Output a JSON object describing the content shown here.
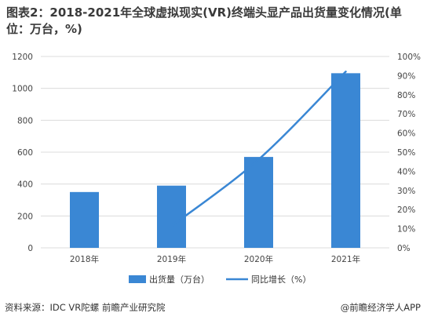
{
  "title": "图表2：2018-2021年全球虚拟现实(VR)终端头显产品出货量变化情况(单位：万台，%)",
  "footer": {
    "source": "资料来源：IDC VR陀螺 前瞻产业研究院",
    "brand": "@前瞻经济学人APP"
  },
  "chart_data": {
    "type": "bar",
    "categories": [
      "2018年",
      "2019年",
      "2020年",
      "2021年"
    ],
    "series": [
      {
        "name": "出货量（万台）",
        "type": "bar",
        "axis": "left",
        "values": [
          350,
          390,
          570,
          1095
        ],
        "color": "#3a87d4"
      },
      {
        "name": "同比增长（%）",
        "type": "line",
        "axis": "right",
        "values": [
          null,
          11.4,
          46.2,
          92.1
        ],
        "color": "#3a87d4"
      }
    ],
    "y_left": {
      "min": 0,
      "max": 1200,
      "ticks": [
        "0",
        "200",
        "400",
        "600",
        "800",
        "1000",
        "1200"
      ]
    },
    "y_right": {
      "min": 0,
      "max": 100,
      "ticks": [
        "0%",
        "10%",
        "20%",
        "30%",
        "40%",
        "50%",
        "60%",
        "70%",
        "80%",
        "90%",
        "100%"
      ]
    },
    "grid": true,
    "legend": "bottom"
  }
}
